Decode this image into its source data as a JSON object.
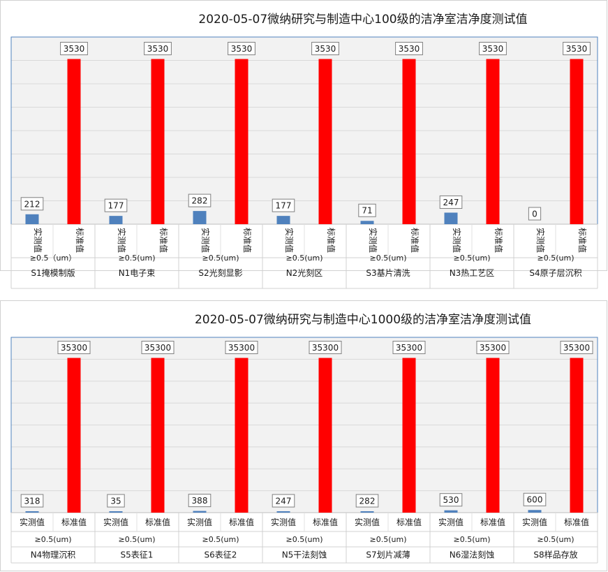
{
  "charts": [
    {
      "title": "2020-05-07微纳研究与制造中心100级的洁净室洁净度测试值",
      "ylim": [
        0,
        4000
      ],
      "vertical_labels": true,
      "series_labels": [
        "实测值",
        "标准值"
      ],
      "colors": {
        "measured": "#4f81bd",
        "standard": "#ff0000"
      },
      "groups": [
        {
          "size": "≥0.5（um）",
          "room": "S1掩模制版",
          "measured": 212,
          "standard": 3530
        },
        {
          "size": "≥0.5(um)",
          "room": "N1电子束",
          "measured": 177,
          "standard": 3530
        },
        {
          "size": "≥0.5(um)",
          "room": "S2光刻显影",
          "measured": 282,
          "standard": 3530
        },
        {
          "size": "≥0.5(um)",
          "room": "N2光刻区",
          "measured": 177,
          "standard": 3530
        },
        {
          "size": "≥0.5(um)",
          "room": "S3基片清洗",
          "measured": 71,
          "standard": 3530
        },
        {
          "size": "≥0.5(um)",
          "room": "N3热工艺区",
          "measured": 247,
          "standard": 3530
        },
        {
          "size": "≥0.5(um)",
          "room": "S4原子层沉积",
          "measured": 0,
          "standard": 3530
        }
      ]
    },
    {
      "title": "2020-05-07微纳研究与制造中心1000级的洁净室洁净度测试值",
      "ylim": [
        0,
        40000
      ],
      "vertical_labels": false,
      "series_labels": [
        "实测值",
        "标准值"
      ],
      "colors": {
        "measured": "#4f81bd",
        "standard": "#ff0000"
      },
      "groups": [
        {
          "size": "≥0.5(um)",
          "room": "N4物理沉积",
          "measured": 318,
          "standard": 35300
        },
        {
          "size": "≥0.5(um)",
          "room": "S5表征1",
          "measured": 35,
          "standard": 35300
        },
        {
          "size": "≥0.5(um)",
          "room": "S6表征2",
          "measured": 388,
          "standard": 35300
        },
        {
          "size": "≥0.5(um)",
          "room": "N5干法刻蚀",
          "measured": 247,
          "standard": 35300
        },
        {
          "size": "≥0.5(um)",
          "room": "S7划片减薄",
          "measured": 282,
          "standard": 35300
        },
        {
          "size": "≥0.5(um)",
          "room": "N6湿法刻蚀",
          "measured": 530,
          "standard": 35300
        },
        {
          "size": "≥0.5(um)",
          "room": "S8样品存放",
          "measured": 600,
          "standard": 35300
        }
      ]
    }
  ],
  "chart_data": [
    {
      "type": "bar",
      "title": "2020-05-07微纳研究与制造中心100级的洁净室洁净度测试值",
      "categories": [
        "S1掩模制版",
        "N1电子束",
        "S2光刻显影",
        "N2光刻区",
        "S3基片清洗",
        "N3热工艺区",
        "S4原子层沉积"
      ],
      "series": [
        {
          "name": "实测值",
          "values": [
            212,
            177,
            282,
            177,
            71,
            247,
            0
          ]
        },
        {
          "name": "标准值",
          "values": [
            3530,
            3530,
            3530,
            3530,
            3530,
            3530,
            3530
          ]
        }
      ],
      "ylim": [
        0,
        4000
      ],
      "grid": true
    },
    {
      "type": "bar",
      "title": "2020-05-07微纳研究与制造中心1000级的洁净室洁净度测试值",
      "categories": [
        "N4物理沉积",
        "S5表征1",
        "S6表征2",
        "N5干法刻蚀",
        "S7划片减薄",
        "N6湿法刻蚀",
        "S8样品存放"
      ],
      "series": [
        {
          "name": "实测值",
          "values": [
            318,
            35,
            388,
            247,
            282,
            530,
            600
          ]
        },
        {
          "name": "标准值",
          "values": [
            35300,
            35300,
            35300,
            35300,
            35300,
            35300,
            35300
          ]
        }
      ],
      "ylim": [
        0,
        40000
      ],
      "grid": true
    }
  ]
}
